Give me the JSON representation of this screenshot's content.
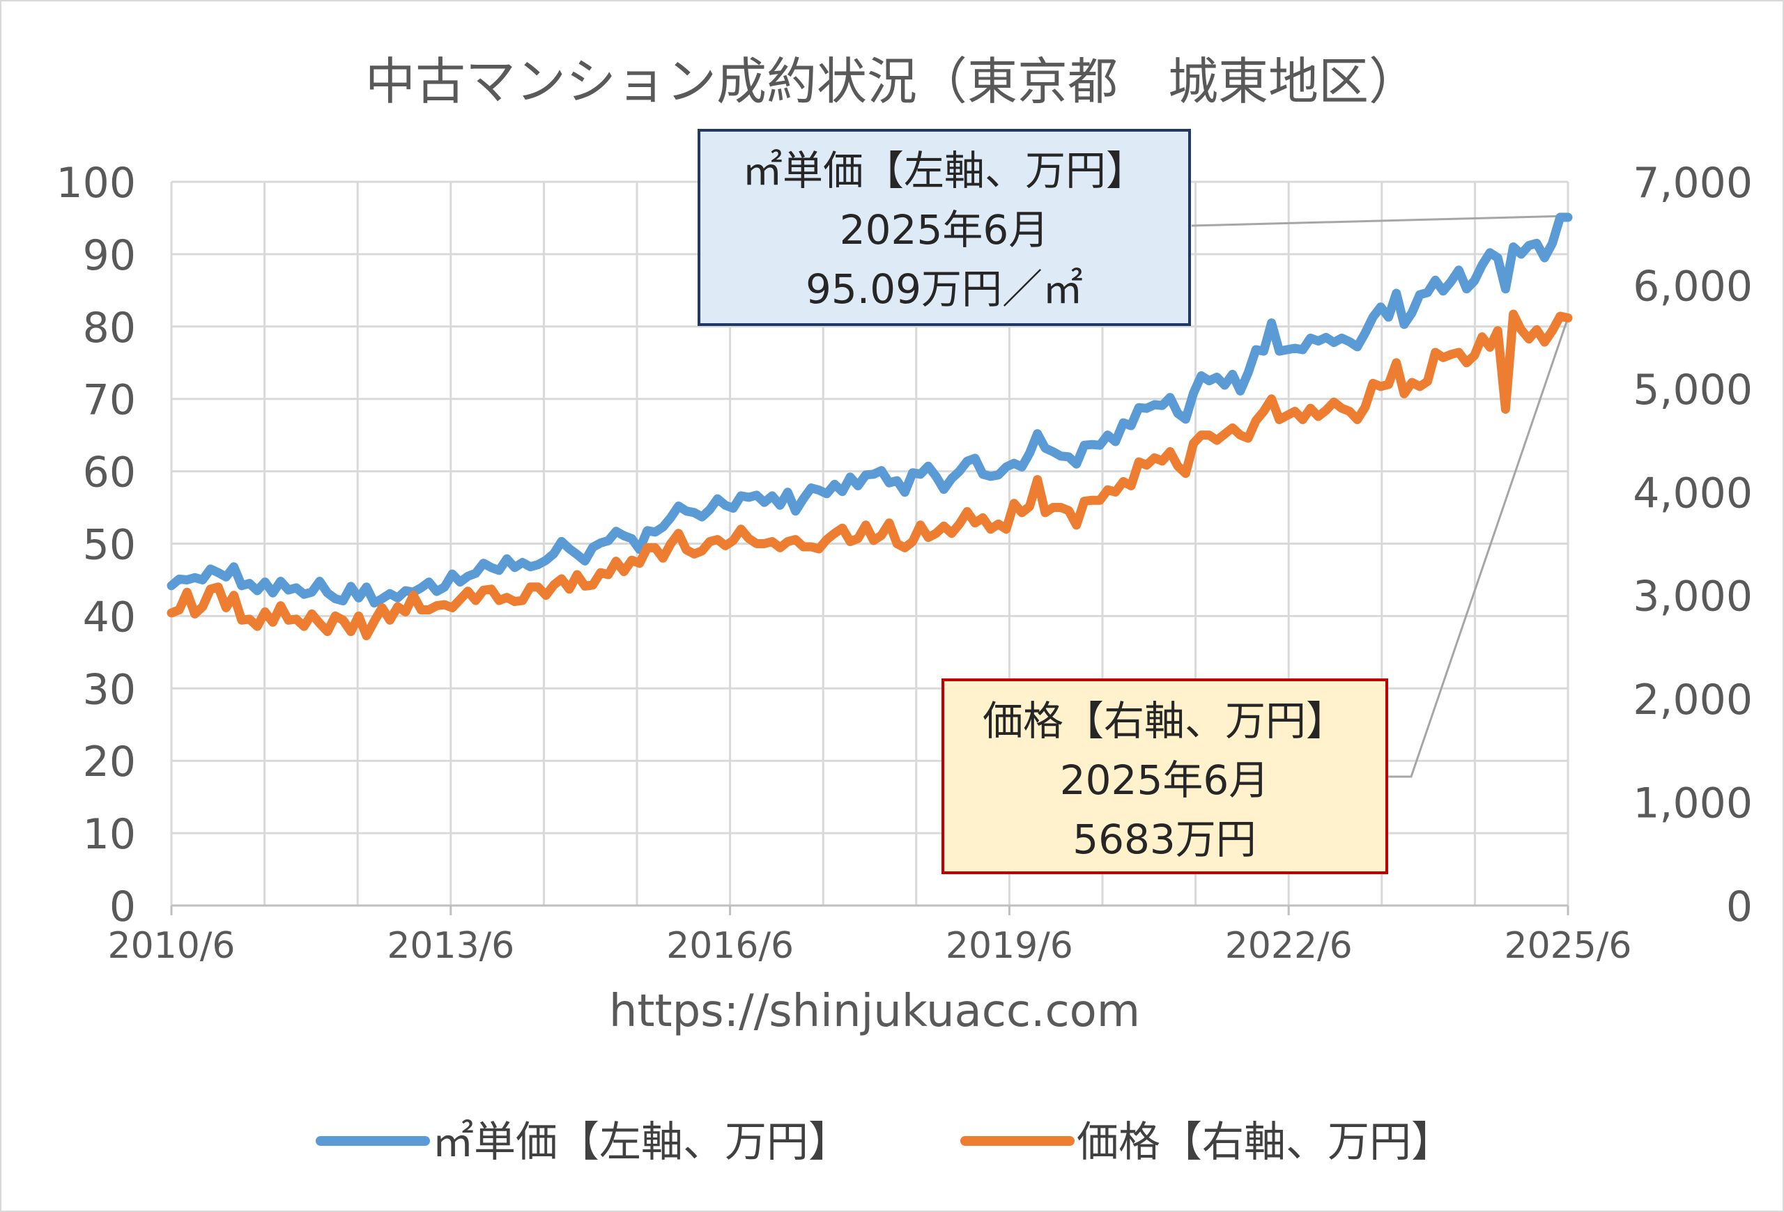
{
  "chart_data": {
    "type": "line",
    "title": "中古マンション成約状況（東京都　城東地区）",
    "url": "https://shinjukuacc.com",
    "x_labels": [
      "2010/6",
      "2013/6",
      "2016/6",
      "2019/6",
      "2022/6",
      "2025/6"
    ],
    "y_left": {
      "range": [
        0,
        100
      ],
      "ticks": [
        "0",
        "10",
        "20",
        "30",
        "40",
        "50",
        "60",
        "70",
        "80",
        "90",
        "100"
      ]
    },
    "y_right": {
      "range": [
        0,
        7000
      ],
      "ticks": [
        "0",
        "1,000",
        "2,000",
        "3,000",
        "4,000",
        "5,000",
        "6,000",
        "7,000"
      ]
    },
    "series": [
      {
        "name": "㎡単価【左軸、万円】",
        "axis": "left",
        "color": "#5B9BD5",
        "values": [
          44.2,
          45.1,
          45.0,
          45.3,
          45.0,
          46.5,
          46.0,
          45.4,
          46.8,
          44.2,
          44.5,
          43.5,
          44.7,
          43.2,
          44.8,
          43.6,
          43.9,
          43.0,
          43.3,
          44.8,
          43.2,
          42.4,
          42.1,
          44.1,
          42.5,
          44.0,
          41.8,
          42.4,
          43.1,
          42.5,
          43.5,
          43.3,
          43.9,
          44.7,
          43.4,
          44.0,
          45.8,
          44.7,
          45.5,
          45.9,
          47.3,
          46.7,
          46.3,
          47.9,
          46.7,
          47.4,
          46.8,
          47.1,
          47.7,
          48.6,
          50.3,
          49.3,
          48.5,
          47.6,
          49.5,
          50.1,
          50.4,
          51.7,
          51.1,
          50.7,
          49.2,
          51.8,
          51.6,
          52.3,
          53.6,
          55.2,
          54.5,
          54.3,
          53.7,
          54.7,
          56.2,
          55.3,
          54.9,
          56.6,
          56.4,
          56.7,
          55.7,
          56.6,
          55.3,
          57.1,
          54.5,
          56.2,
          57.7,
          57.4,
          56.9,
          58.2,
          57.2,
          59.2,
          58.0,
          59.5,
          59.6,
          60.1,
          58.4,
          58.7,
          57.1,
          59.8,
          59.6,
          60.7,
          59.3,
          57.5,
          59.0,
          60.0,
          61.4,
          61.8,
          59.6,
          59.3,
          59.5,
          60.6,
          61.1,
          60.6,
          62.5,
          65.2,
          63.2,
          62.7,
          62.1,
          62.0,
          61.0,
          63.6,
          63.7,
          63.6,
          65.0,
          64.1,
          66.7,
          66.3,
          68.8,
          68.7,
          69.2,
          69.1,
          70.2,
          68.0,
          67.2,
          70.8,
          73.2,
          72.5,
          73.0,
          71.9,
          73.4,
          71.1,
          73.6,
          76.8,
          76.6,
          80.5,
          76.6,
          76.8,
          77.0,
          76.8,
          78.4,
          78.0,
          78.5,
          77.8,
          78.4,
          77.9,
          77.2,
          79.1,
          81.3,
          82.7,
          81.3,
          84.6,
          80.3,
          81.9,
          84.4,
          84.7,
          86.4,
          84.9,
          86.2,
          87.8,
          85.2,
          86.3,
          88.5,
          90.2,
          89.5,
          85.2,
          91.0,
          90.0,
          91.2,
          91.5,
          89.5,
          91.5,
          95.1,
          95.09
        ]
      },
      {
        "name": "価格【右軸、万円】",
        "axis": "right",
        "color": "#ED7D31",
        "values": [
          2830,
          2860,
          3030,
          2820,
          2890,
          3060,
          3080,
          2880,
          3000,
          2760,
          2770,
          2700,
          2840,
          2740,
          2900,
          2760,
          2770,
          2700,
          2820,
          2730,
          2650,
          2800,
          2760,
          2650,
          2800,
          2610,
          2750,
          2880,
          2760,
          2890,
          2840,
          3000,
          2860,
          2860,
          2900,
          2910,
          2880,
          2960,
          3040,
          2950,
          3050,
          3060,
          2950,
          2980,
          2940,
          2950,
          3080,
          3080,
          3000,
          3100,
          3160,
          3060,
          3200,
          3090,
          3100,
          3220,
          3200,
          3330,
          3230,
          3340,
          3310,
          3460,
          3460,
          3360,
          3500,
          3600,
          3440,
          3400,
          3430,
          3520,
          3540,
          3480,
          3530,
          3640,
          3550,
          3500,
          3500,
          3520,
          3460,
          3520,
          3540,
          3470,
          3470,
          3450,
          3540,
          3600,
          3650,
          3520,
          3550,
          3680,
          3530,
          3580,
          3700,
          3500,
          3460,
          3520,
          3680,
          3560,
          3600,
          3670,
          3600,
          3690,
          3810,
          3700,
          3750,
          3640,
          3690,
          3640,
          3890,
          3800,
          3860,
          4120,
          3800,
          3850,
          3850,
          3820,
          3680,
          3910,
          3920,
          3920,
          4020,
          4000,
          4100,
          4060,
          4290,
          4260,
          4330,
          4300,
          4390,
          4250,
          4180,
          4470,
          4550,
          4550,
          4500,
          4560,
          4620,
          4550,
          4520,
          4690,
          4780,
          4900,
          4700,
          4740,
          4780,
          4700,
          4810,
          4730,
          4790,
          4870,
          4810,
          4780,
          4700,
          4820,
          5050,
          5020,
          5040,
          5250,
          4950,
          5060,
          5020,
          5070,
          5350,
          5300,
          5330,
          5350,
          5250,
          5320,
          5500,
          5400,
          5560,
          4800,
          5720,
          5570,
          5480,
          5570,
          5450,
          5560,
          5700,
          5683
        ]
      }
    ]
  },
  "callout_sqm": {
    "line1": "㎡単価【左軸、万円】",
    "line2": "2025年6月",
    "line3": "95.09万円／㎡"
  },
  "callout_price": {
    "line1": "価格【右軸、万円】",
    "line2": "2025年6月",
    "line3": "5683万円"
  },
  "legend": {
    "sqm": "㎡単価【左軸、万円】",
    "price": "価格【右軸、万円】"
  }
}
